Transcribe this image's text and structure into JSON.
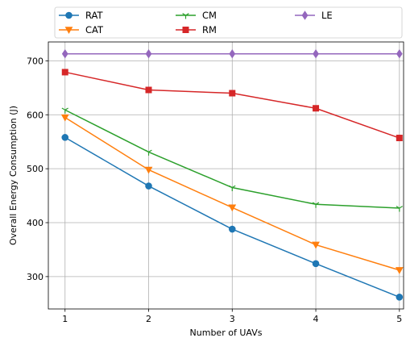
{
  "chart_data": {
    "type": "line",
    "x": [
      1,
      2,
      3,
      4,
      5
    ],
    "xlabel": "Number of UAVs",
    "ylabel": "Overall Energy Consumption (J)",
    "xlim": [
      0.8,
      5.05
    ],
    "ylim": [
      240,
      735
    ],
    "xticks": [
      1,
      2,
      3,
      4,
      5
    ],
    "yticks": [
      300,
      400,
      500,
      600,
      700
    ],
    "grid": true,
    "legend_position": "top",
    "series": [
      {
        "name": "RAT",
        "values": [
          558,
          468,
          388,
          324,
          262
        ],
        "color": "#1f77b4",
        "marker": "circle"
      },
      {
        "name": "CAT",
        "values": [
          595,
          498,
          428,
          359,
          312
        ],
        "color": "#ff7f0e",
        "marker": "triangle-down"
      },
      {
        "name": "CM",
        "values": [
          609,
          531,
          465,
          434,
          427
        ],
        "color": "#2ca02c",
        "marker": "tri-down"
      },
      {
        "name": "RM",
        "values": [
          679,
          646,
          640,
          612,
          557
        ],
        "color": "#d62728",
        "marker": "square"
      },
      {
        "name": "LE",
        "values": [
          713,
          713,
          713,
          713,
          713
        ],
        "color": "#9467bd",
        "marker": "diamond"
      }
    ]
  }
}
